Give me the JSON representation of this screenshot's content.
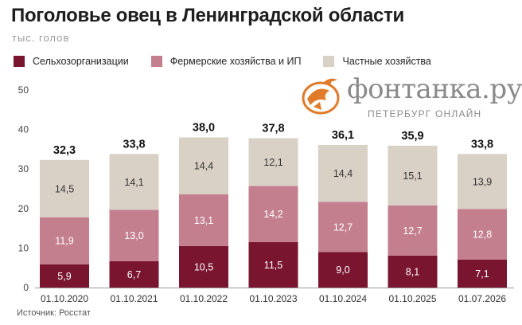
{
  "title": "Поголовье овец в Ленинградской области",
  "subtitle": "тыс. голов",
  "source": "Источник: Росстат",
  "logo": {
    "name": "фонтанка.ру",
    "tagline": "ПЕТЕРБУРГ ОНЛАЙН"
  },
  "colors": {
    "farms": "#7a1530",
    "farmers": "#c47f8e",
    "private": "#d9d0c6",
    "accent": "#e07b2a"
  },
  "legend": [
    {
      "label": "Сельхозорганизации",
      "color": "#7a1530"
    },
    {
      "label": "Фермерские хозяйства и ИП",
      "color": "#c47f8e"
    },
    {
      "label": "Частные хозяйства",
      "color": "#d9d0c6"
    }
  ],
  "chart_data": {
    "type": "bar",
    "stacked": true,
    "categories": [
      "01.10.2020",
      "01.10.2021",
      "01.10.2022",
      "01.10.2023",
      "01.10.2024",
      "01.10.2025",
      "01.07.2026"
    ],
    "series": [
      {
        "name": "Сельхозорганизации",
        "values": [
          5.9,
          6.7,
          10.5,
          11.5,
          9.0,
          8.1,
          7.1
        ],
        "labels": [
          "5,9",
          "6,7",
          "10,5",
          "11,5",
          "9,0",
          "8,1",
          "7,1"
        ]
      },
      {
        "name": "Фермерские хозяйства и ИП",
        "values": [
          11.9,
          13.0,
          13.1,
          14.2,
          12.7,
          12.7,
          12.8
        ],
        "labels": [
          "11,9",
          "13,0",
          "13,1",
          "14,2",
          "12,7",
          "12,7",
          "12,8"
        ]
      },
      {
        "name": "Частные хозяйства",
        "values": [
          14.5,
          14.1,
          14.4,
          12.1,
          14.4,
          15.1,
          13.9
        ],
        "labels": [
          "14,5",
          "14,1",
          "14,4",
          "12,1",
          "14,4",
          "15,1",
          "13,9"
        ]
      }
    ],
    "totals": [
      32.3,
      33.8,
      38.0,
      37.8,
      36.1,
      35.9,
      33.8
    ],
    "total_labels": [
      "32,3",
      "33,8",
      "38,0",
      "37,8",
      "36,1",
      "35,9",
      "33,8"
    ],
    "yticks": [
      0,
      10,
      20,
      30,
      40,
      50
    ],
    "ylim": [
      0,
      50
    ],
    "grid": false,
    "legend_position": "top-left"
  }
}
